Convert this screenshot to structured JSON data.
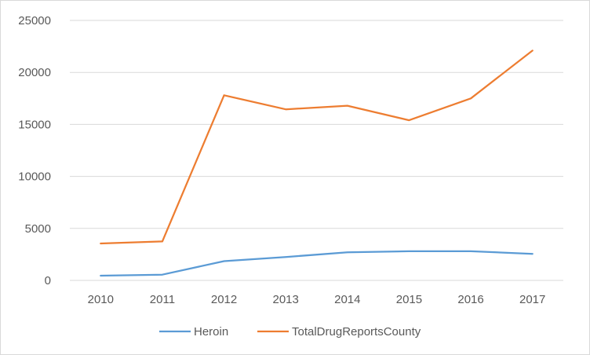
{
  "chart_data": {
    "type": "line",
    "title": "",
    "xlabel": "",
    "ylabel": "",
    "categories": [
      "2010",
      "2011",
      "2012",
      "2013",
      "2014",
      "2015",
      "2016",
      "2017"
    ],
    "ylim": [
      0,
      25000
    ],
    "yticks": [
      0,
      5000,
      10000,
      15000,
      20000,
      25000
    ],
    "grid": true,
    "legend_position": "bottom",
    "series": [
      {
        "name": "Heroin",
        "color": "#5b9bd5",
        "values": [
          450,
          550,
          1850,
          2250,
          2700,
          2800,
          2800,
          2550
        ]
      },
      {
        "name": "TotalDrugReportsCounty",
        "color": "#ed7d31",
        "values": [
          3550,
          3750,
          17800,
          16450,
          16800,
          15400,
          17500,
          22100
        ]
      }
    ]
  }
}
